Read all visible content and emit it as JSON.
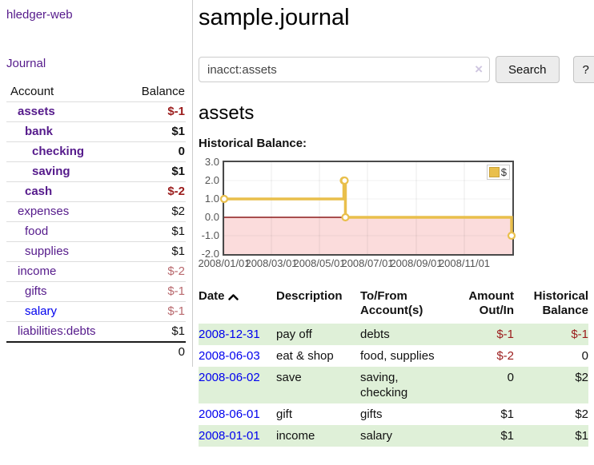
{
  "sidebar": {
    "app_title": "hledger-web",
    "journal_link": "Journal",
    "account_header": "Account",
    "balance_header": "Balance",
    "accounts": [
      {
        "name": "assets",
        "depth": 1,
        "bold": true,
        "balance": "$-1",
        "negative": true,
        "link_color": "purple"
      },
      {
        "name": "bank",
        "depth": 2,
        "bold": true,
        "balance": "$1",
        "negative": false,
        "link_color": "purple"
      },
      {
        "name": "checking",
        "depth": 3,
        "bold": true,
        "balance": "0",
        "negative": false,
        "link_color": "purple"
      },
      {
        "name": "saving",
        "depth": 3,
        "bold": true,
        "balance": "$1",
        "negative": false,
        "link_color": "purple"
      },
      {
        "name": "cash",
        "depth": 2,
        "bold": true,
        "balance": "$-2",
        "negative": true,
        "link_color": "purple"
      },
      {
        "name": "expenses",
        "depth": 1,
        "bold": false,
        "balance": "$2",
        "negative": false,
        "link_color": "purple"
      },
      {
        "name": "food",
        "depth": 2,
        "bold": false,
        "balance": "$1",
        "negative": false,
        "link_color": "purple"
      },
      {
        "name": "supplies",
        "depth": 2,
        "bold": false,
        "balance": "$1",
        "negative": false,
        "link_color": "purple"
      },
      {
        "name": "income",
        "depth": 1,
        "bold": false,
        "balance": "$-2",
        "negative": true,
        "link_color": "purple"
      },
      {
        "name": "gifts",
        "depth": 2,
        "bold": false,
        "balance": "$-1",
        "negative": true,
        "link_color": "purple"
      },
      {
        "name": "salary",
        "depth": 2,
        "bold": false,
        "balance": "$-1",
        "negative": true,
        "link_color": "blue"
      },
      {
        "name": "liabilities:debts",
        "depth": 1,
        "bold": false,
        "balance": "$1",
        "negative": false,
        "link_color": "purple"
      }
    ],
    "total": "0"
  },
  "main": {
    "title": "sample.journal",
    "search": {
      "value": "inacct:assets",
      "clear_icon": "×",
      "search_button": "Search",
      "help_button": "?"
    },
    "account_heading": "assets",
    "chart_label": "Historical Balance:"
  },
  "chart_data": {
    "type": "line",
    "title": "Historical Balance:",
    "step": true,
    "series": [
      {
        "name": "$",
        "color": "#e9bf4b",
        "points": [
          {
            "date": "2008-01-01",
            "value": 1
          },
          {
            "date": "2008-06-01",
            "value": 2
          },
          {
            "date": "2008-06-02",
            "value": 2
          },
          {
            "date": "2008-06-03",
            "value": 0
          },
          {
            "date": "2008-12-31",
            "value": -1
          }
        ]
      }
    ],
    "x_ticks": [
      "2008/01/01",
      "2008/03/01",
      "2008/05/01",
      "2008/07/01",
      "2008/09/01",
      "2008/11/01"
    ],
    "y_ticks": [
      "3.0",
      "2.0",
      "1.0",
      "0.0",
      "-1.0",
      "-2.0"
    ],
    "ylim": [
      -2,
      3
    ],
    "xlim_dates": [
      "2008-01-01",
      "2009-01-01"
    ],
    "grid": true,
    "legend": {
      "label": "$",
      "position": "top-right"
    },
    "negative_fill": "#fbdcdc",
    "zero_line_color": "#8b1a1a"
  },
  "register": {
    "headers": [
      "Date",
      "Description",
      "To/From Account(s)",
      "Amount Out/In",
      "Historical Balance"
    ],
    "sort_icon": "chevron-up",
    "rows": [
      {
        "date": "2008-12-31",
        "description": "pay off",
        "accounts": "debts",
        "amount": "$-1",
        "amount_negative": true,
        "balance": "$-1",
        "balance_negative": true
      },
      {
        "date": "2008-06-03",
        "description": "eat & shop",
        "accounts": "food, supplies",
        "amount": "$-2",
        "amount_negative": true,
        "balance": "0",
        "balance_negative": false
      },
      {
        "date": "2008-06-02",
        "description": "save",
        "accounts": "saving, checking",
        "amount": "0",
        "amount_negative": false,
        "balance": "$2",
        "balance_negative": false
      },
      {
        "date": "2008-06-01",
        "description": "gift",
        "accounts": "gifts",
        "amount": "$1",
        "amount_negative": false,
        "balance": "$2",
        "balance_negative": false
      },
      {
        "date": "2008-01-01",
        "description": "income",
        "accounts": "salary",
        "amount": "$1",
        "amount_negative": false,
        "balance": "$1",
        "balance_negative": false
      }
    ]
  },
  "colors": {
    "link_purple": "#551a8b",
    "link_blue": "#0000ee",
    "negative_strong": "#9b1c1c",
    "negative_soft": "#b8686d",
    "row_green": "#dff0d8",
    "chart_line_gold": "#e9bf4b",
    "chart_negative_fill": "#fbdcdc",
    "chart_zero_line": "#8b1a1a"
  }
}
